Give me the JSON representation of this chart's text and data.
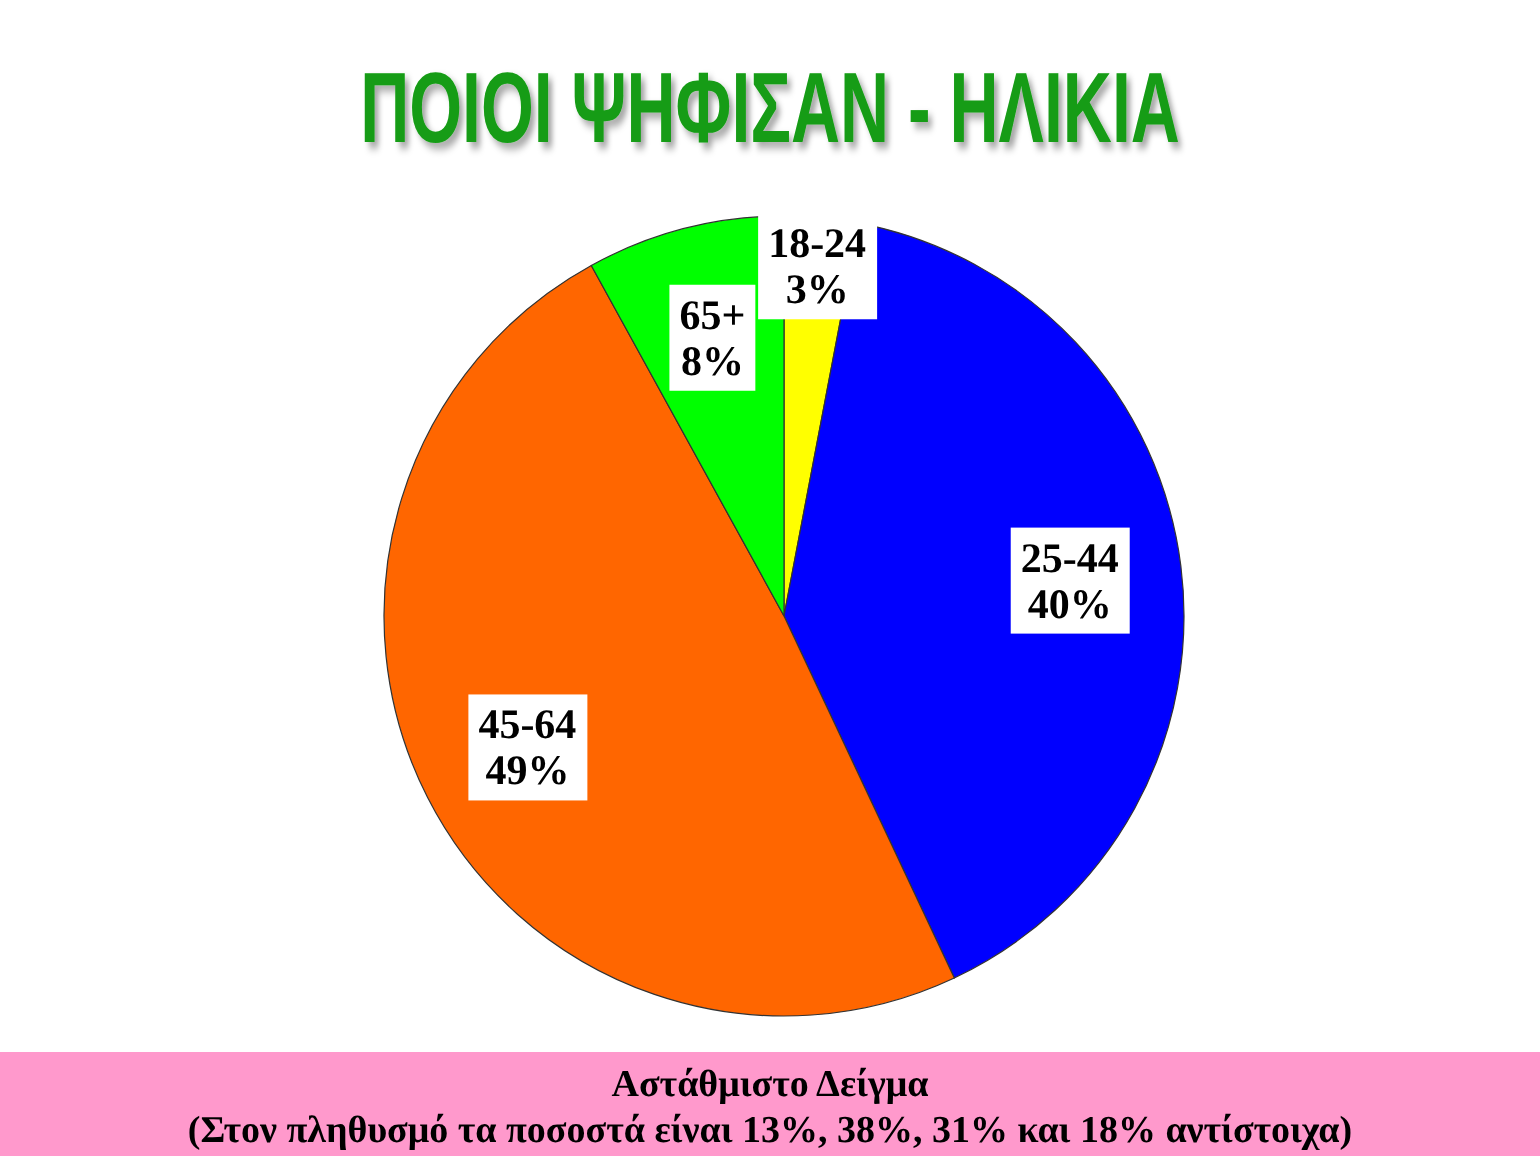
{
  "chart_data": {
    "type": "pie",
    "title": "ΠΟΙΟΙ ΨΗΦΙΣΑΝ - ΗΛΙΚΙΑ",
    "categories": [
      "18-24",
      "25-44",
      "45-64",
      "65+"
    ],
    "values": [
      3,
      40,
      49,
      8
    ],
    "colors": [
      "#ffff00",
      "#0000ff",
      "#ff6600",
      "#00ff00"
    ],
    "value_labels": [
      "3%",
      "40%",
      "49%",
      "8%"
    ],
    "annotations": [
      "Αστάθμιστο Δείγμα",
      "(Στον πληθυσμό τα ποσοστά είναι 13%, 38%, 31% και 18% αντίστοιχα)"
    ]
  }
}
